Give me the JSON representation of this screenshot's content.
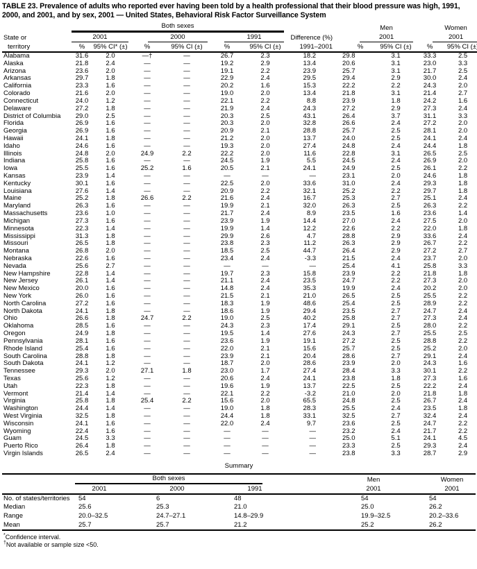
{
  "title": "TABLE 23. Prevalence of adults who reported ever having been told by a health professional that their blood pressure was high, 1991, 2000, and 2001, and by sex, 2001 — United States, Behavioral Risk Factor Surveillance System",
  "header": {
    "state_line1": "State or",
    "state_line2": "territory",
    "both_sexes": "Both sexes",
    "men": "Men",
    "women": "Women",
    "y2001": "2001",
    "y2000": "2000",
    "y1991": "1991",
    "difference_line1": "Difference (%)",
    "difference_line2": "1991–2001",
    "pct": "%",
    "ci_star": "95% CI* (±)",
    "ci": "95% CI (±)"
  },
  "rows": [
    [
      "Alabama",
      "31.6",
      "2.0",
      "—†",
      "—",
      "26.7",
      "2.3",
      "18.2",
      "29.8",
      "3.1",
      "33.3",
      "2.5"
    ],
    [
      "Alaska",
      "21.8",
      "2.4",
      "—",
      "—",
      "19.2",
      "2.9",
      "13.4",
      "20.6",
      "3.1",
      "23.0",
      "3.3"
    ],
    [
      "Arizona",
      "23.6",
      "2.0",
      "—",
      "—",
      "19.1",
      "2.2",
      "23.9",
      "25.7",
      "3.1",
      "21.7",
      "2.5"
    ],
    [
      "Arkansas",
      "29.7",
      "1.8",
      "—",
      "—",
      "22.9",
      "2.4",
      "29.5",
      "29.4",
      "2.9",
      "30.0",
      "2.4"
    ],
    [
      "California",
      "23.3",
      "1.6",
      "—",
      "—",
      "20.2",
      "1.6",
      "15.3",
      "22.2",
      "2.2",
      "24.3",
      "2.0"
    ],
    [
      "Colorado",
      "21.6",
      "2.0",
      "—",
      "—",
      "19.0",
      "2.0",
      "13.4",
      "21.8",
      "3.1",
      "21.4",
      "2.7"
    ],
    [
      "Connecticut",
      "24.0",
      "1.2",
      "—",
      "—",
      "22.1",
      "2.2",
      "8.8",
      "23.9",
      "1.8",
      "24.2",
      "1.6"
    ],
    [
      "Delaware",
      "27.2",
      "1.8",
      "—",
      "—",
      "21.9",
      "2.4",
      "24.3",
      "27.2",
      "2.9",
      "27.3",
      "2.4"
    ],
    [
      "District of Columbia",
      "29.0",
      "2.5",
      "—",
      "—",
      "20.3",
      "2.5",
      "43.1",
      "26.4",
      "3.7",
      "31.1",
      "3.3"
    ],
    [
      "Florida",
      "26.9",
      "1.6",
      "—",
      "—",
      "20.3",
      "2.0",
      "32.8",
      "26.6",
      "2.4",
      "27.2",
      "2.0"
    ],
    [
      "Georgia",
      "26.9",
      "1.6",
      "—",
      "—",
      "20.9",
      "2.1",
      "28.8",
      "25.7",
      "2.5",
      "28.1",
      "2.0"
    ],
    [
      "Hawaii",
      "24.1",
      "1.8",
      "—",
      "—",
      "21.2",
      "2.0",
      "13.7",
      "24.0",
      "2.5",
      "24.1",
      "2.4"
    ],
    [
      "Idaho",
      "24.6",
      "1.6",
      "—",
      "—",
      "19.3",
      "2.0",
      "27.4",
      "24.8",
      "2.4",
      "24.4",
      "1.8"
    ],
    [
      "Illinois",
      "24.8",
      "2.0",
      "24.9",
      "2.2",
      "22.2",
      "2.0",
      "11.6",
      "22.8",
      "3.1",
      "26.5",
      "2.5"
    ],
    [
      "Indiana",
      "25.8",
      "1.6",
      "—",
      "—",
      "24.5",
      "1.9",
      "5.5",
      "24.5",
      "2.4",
      "26.9",
      "2.0"
    ],
    [
      "Iowa",
      "25.5",
      "1.6",
      "25.2",
      "1.6",
      "20.5",
      "2.1",
      "24.1",
      "24.9",
      "2.5",
      "26.1",
      "2.2"
    ],
    [
      "Kansas",
      "23.9",
      "1.4",
      "—",
      "—",
      "—",
      "—",
      "—",
      "23.1",
      "2.0",
      "24.6",
      "1.8"
    ],
    [
      "Kentucky",
      "30.1",
      "1.6",
      "—",
      "—",
      "22.5",
      "2.0",
      "33.6",
      "31.0",
      "2.4",
      "29.3",
      "1.8"
    ],
    [
      "Louisiana",
      "27.6",
      "1.4",
      "—",
      "—",
      "20.9",
      "2.2",
      "32.1",
      "25.2",
      "2.2",
      "29.7",
      "1.8"
    ],
    [
      "Maine",
      "25.2",
      "1.8",
      "26.6",
      "2.2",
      "21.6",
      "2.4",
      "16.7",
      "25.3",
      "2.7",
      "25.1",
      "2.4"
    ],
    [
      "Maryland",
      "26.3",
      "1.6",
      "—",
      "—",
      "19.9",
      "2.1",
      "32.0",
      "26.3",
      "2.5",
      "26.3",
      "2.2"
    ],
    [
      "Massachusetts",
      "23.6",
      "1.0",
      "—",
      "—",
      "21.7",
      "2.4",
      "8.9",
      "23.5",
      "1.6",
      "23.6",
      "1.4"
    ],
    [
      "Michigan",
      "27.3",
      "1.6",
      "—",
      "—",
      "23.9",
      "1.9",
      "14.4",
      "27.0",
      "2.4",
      "27.5",
      "2.0"
    ],
    [
      "Minnesota",
      "22.3",
      "1.4",
      "—",
      "—",
      "19.9",
      "1.4",
      "12.2",
      "22.6",
      "2.2",
      "22.0",
      "1.8"
    ],
    [
      "Mississippi",
      "31.3",
      "1.8",
      "—",
      "—",
      "29.9",
      "2.6",
      "4.7",
      "28.8",
      "2.9",
      "33.6",
      "2.4"
    ],
    [
      "Missouri",
      "26.5",
      "1.8",
      "—",
      "—",
      "23.8",
      "2.3",
      "11.2",
      "26.3",
      "2.9",
      "26.7",
      "2.2"
    ],
    [
      "Montana",
      "26.8",
      "2.0",
      "—",
      "—",
      "18.5",
      "2.5",
      "44.7",
      "26.4",
      "2.9",
      "27.2",
      "2.7"
    ],
    [
      "Nebraska",
      "22.6",
      "1.6",
      "—",
      "—",
      "23.4",
      "2.4",
      "-3.3",
      "21.5",
      "2.4",
      "23.7",
      "2.0"
    ],
    [
      "Nevada",
      "25.6",
      "2.7",
      "—",
      "—",
      "—",
      "—",
      "—",
      "25.4",
      "4.1",
      "25.8",
      "3.3"
    ],
    [
      "New Hampshire",
      "22.8",
      "1.4",
      "—",
      "—",
      "19.7",
      "2.3",
      "15.8",
      "23.9",
      "2.2",
      "21.8",
      "1.8"
    ],
    [
      "New Jersey",
      "26.1",
      "1.4",
      "—",
      "—",
      "21.1",
      "2.4",
      "23.5",
      "24.7",
      "2.2",
      "27.3",
      "2.0"
    ],
    [
      "New Mexico",
      "20.0",
      "1.6",
      "—",
      "—",
      "14.8",
      "2.4",
      "35.3",
      "19.9",
      "2.4",
      "20.2",
      "2.0"
    ],
    [
      "New York",
      "26.0",
      "1.6",
      "—",
      "—",
      "21.5",
      "2.1",
      "21.0",
      "26.5",
      "2.5",
      "25.5",
      "2.2"
    ],
    [
      "North Carolina",
      "27.2",
      "1.6",
      "—",
      "—",
      "18.3",
      "1.9",
      "48.6",
      "25.4",
      "2.5",
      "28.9",
      "2.2"
    ],
    [
      "North Dakota",
      "24.1",
      "1.8",
      "—",
      "—",
      "18.6",
      "1.9",
      "29.4",
      "23.5",
      "2.7",
      "24.7",
      "2.4"
    ],
    [
      "Ohio",
      "26.6",
      "1.8",
      "24.7",
      "2.2",
      "19.0",
      "2.5",
      "40.2",
      "25.8",
      "2.7",
      "27.3",
      "2.4"
    ],
    [
      "Oklahoma",
      "28.5",
      "1.6",
      "—",
      "—",
      "24.3",
      "2.3",
      "17.4",
      "29.1",
      "2.5",
      "28.0",
      "2.2"
    ],
    [
      "Oregon",
      "24.9",
      "1.8",
      "—",
      "—",
      "19.5",
      "1.4",
      "27.6",
      "24.3",
      "2.7",
      "25.5",
      "2.5"
    ],
    [
      "Pennsylvania",
      "28.1",
      "1.6",
      "—",
      "—",
      "23.6",
      "1.9",
      "19.1",
      "27.2",
      "2.5",
      "28.8",
      "2.2"
    ],
    [
      "Rhode Island",
      "25.4",
      "1.6",
      "—",
      "—",
      "22.0",
      "2.1",
      "15.6",
      "25.7",
      "2.5",
      "25.2",
      "2.0"
    ],
    [
      "South Carolina",
      "28.8",
      "1.8",
      "—",
      "—",
      "23.9",
      "2.1",
      "20.4",
      "28.6",
      "2.7",
      "29.1",
      "2.4"
    ],
    [
      "South Dakota",
      "24.1",
      "1.2",
      "—",
      "—",
      "18.7",
      "2.0",
      "28.6",
      "23.9",
      "2.0",
      "24.3",
      "1.6"
    ],
    [
      "Tennessee",
      "29.3",
      "2.0",
      "27.1",
      "1.8",
      "23.0",
      "1.7",
      "27.4",
      "28.4",
      "3.3",
      "30.1",
      "2.2"
    ],
    [
      "Texas",
      "25.6",
      "1.2",
      "—",
      "—",
      "20.6",
      "2.4",
      "24.1",
      "23.8",
      "1.8",
      "27.3",
      "1.6"
    ],
    [
      "Utah",
      "22.3",
      "1.8",
      "—",
      "—",
      "19.6",
      "1.9",
      "13.7",
      "22.5",
      "2.5",
      "22.2",
      "2.4"
    ],
    [
      "Vermont",
      "21.4",
      "1.4",
      "—",
      "—",
      "22.1",
      "2.2",
      "-3.2",
      "21.0",
      "2.0",
      "21.8",
      "1.8"
    ],
    [
      "Virginia",
      "25.8",
      "1.8",
      "25.4",
      "2.2",
      "15.6",
      "2.0",
      "65.5",
      "24.8",
      "2.5",
      "26.7",
      "2.4"
    ],
    [
      "Washington",
      "24.4",
      "1.4",
      "—",
      "—",
      "19.0",
      "1.8",
      "28.3",
      "25.5",
      "2.4",
      "23.5",
      "1.8"
    ],
    [
      "West Virginia",
      "32.5",
      "1.8",
      "—",
      "—",
      "24.4",
      "1.8",
      "33.1",
      "32.5",
      "2.7",
      "32.4",
      "2.4"
    ],
    [
      "Wisconsin",
      "24.1",
      "1.6",
      "—",
      "—",
      "22.0",
      "2.4",
      "9.7",
      "23.6",
      "2.5",
      "24.7",
      "2.2"
    ],
    [
      "Wyoming",
      "22.4",
      "1.6",
      "—",
      "—",
      "—",
      "—",
      "—",
      "23.2",
      "2.4",
      "21.7",
      "2.2"
    ],
    [
      "Guam",
      "24.5",
      "3.3",
      "—",
      "—",
      "—",
      "—",
      "—",
      "25.0",
      "5.1",
      "24.1",
      "4.5"
    ],
    [
      "Puerto Rico",
      "26.4",
      "1.8",
      "—",
      "—",
      "—",
      "—",
      "—",
      "23.3",
      "2.5",
      "29.3",
      "2.4"
    ],
    [
      "Virgin Islands",
      "26.5",
      "2.4",
      "—",
      "—",
      "—",
      "—",
      "—",
      "23.8",
      "3.3",
      "28.7",
      "2.9"
    ]
  ],
  "summary": {
    "heading": "Summary",
    "rows": [
      [
        "No. of states/territories",
        "54",
        "6",
        "48",
        "54",
        "54"
      ],
      [
        "Median",
        "25.6",
        "25.3",
        "21.0",
        "25.0",
        "26.2"
      ],
      [
        "Range",
        "20.0–32.5",
        "24.7–27.1",
        "14.8–29.9",
        "19.9–32.5",
        "20.2–33.6"
      ],
      [
        "Mean",
        "25.7",
        "25.7",
        "21.2",
        "25.2",
        "26.2"
      ]
    ]
  },
  "footnotes": [
    {
      "marker": "*",
      "text": "Confidence interval."
    },
    {
      "marker": "†",
      "text": "Not available or sample size <50."
    }
  ]
}
